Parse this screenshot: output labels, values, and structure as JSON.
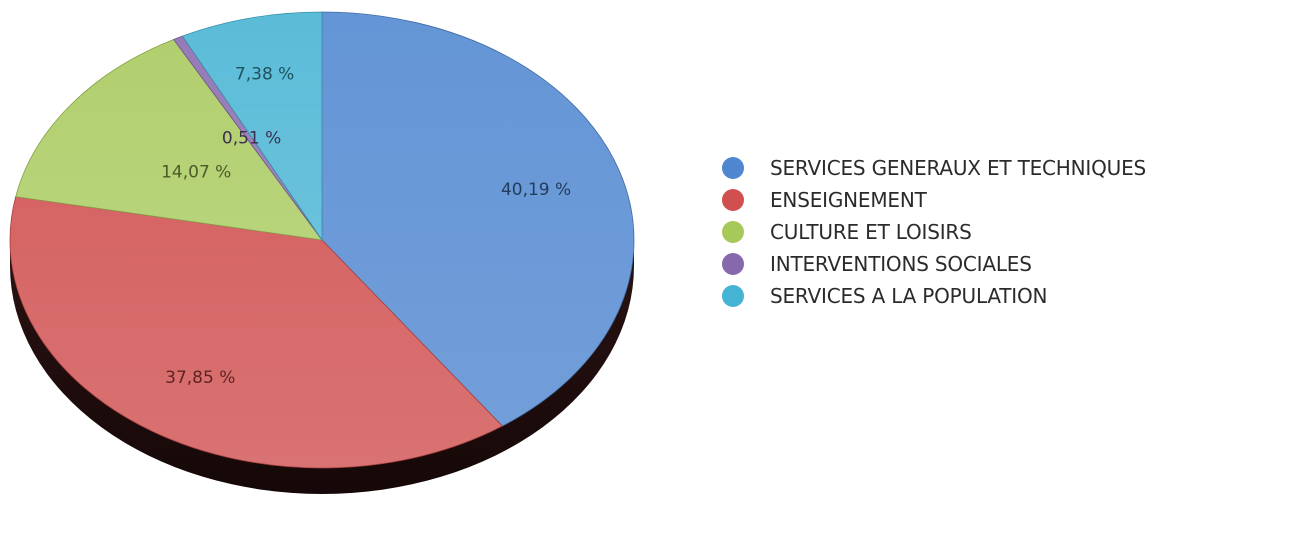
{
  "chart_data": {
    "type": "pie",
    "title": "",
    "legend_position": "right",
    "slices": [
      {
        "label": "SERVICES GENERAUX ET TECHNIQUES",
        "value": 40.19,
        "value_label": "40,19 %",
        "color": "#4f86d0"
      },
      {
        "label": "ENSEIGNEMENT",
        "value": 37.85,
        "value_label": "37,85 %",
        "color": "#d04f4f"
      },
      {
        "label": "CULTURE ET LOISIRS",
        "value": 14.07,
        "value_label": "14,07 %",
        "color": "#a6c95a"
      },
      {
        "label": "INTERVENTIONS SOCIALES",
        "value": 0.51,
        "value_label": "0,51 %",
        "color": "#8669ad"
      },
      {
        "label": "SERVICES A LA POPULATION",
        "value": 7.38,
        "value_label": "7,38 %",
        "color": "#45b3d3"
      }
    ]
  }
}
